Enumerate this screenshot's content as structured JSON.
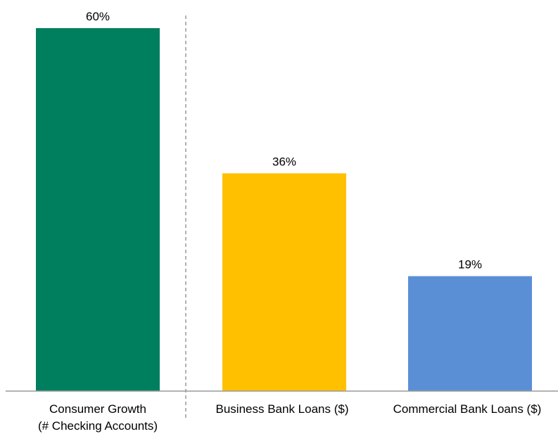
{
  "chart_data": {
    "type": "bar",
    "categories": [
      [
        "Consumer Growth",
        "(# Checking Accounts)"
      ],
      [
        "Business Bank Loans ($)"
      ],
      [
        "Commercial Bank Loans ($)"
      ]
    ],
    "values": [
      60,
      36,
      19
    ],
    "value_labels": [
      "60%",
      "36%",
      "19%"
    ],
    "colors": [
      "#007f5f",
      "#ffc000",
      "#5a8fd6"
    ],
    "ylim": [
      0,
      60
    ],
    "grid": false,
    "divider": {
      "style": "dashed",
      "after_category": 0
    },
    "title": "",
    "xlabel": "",
    "ylabel": ""
  }
}
